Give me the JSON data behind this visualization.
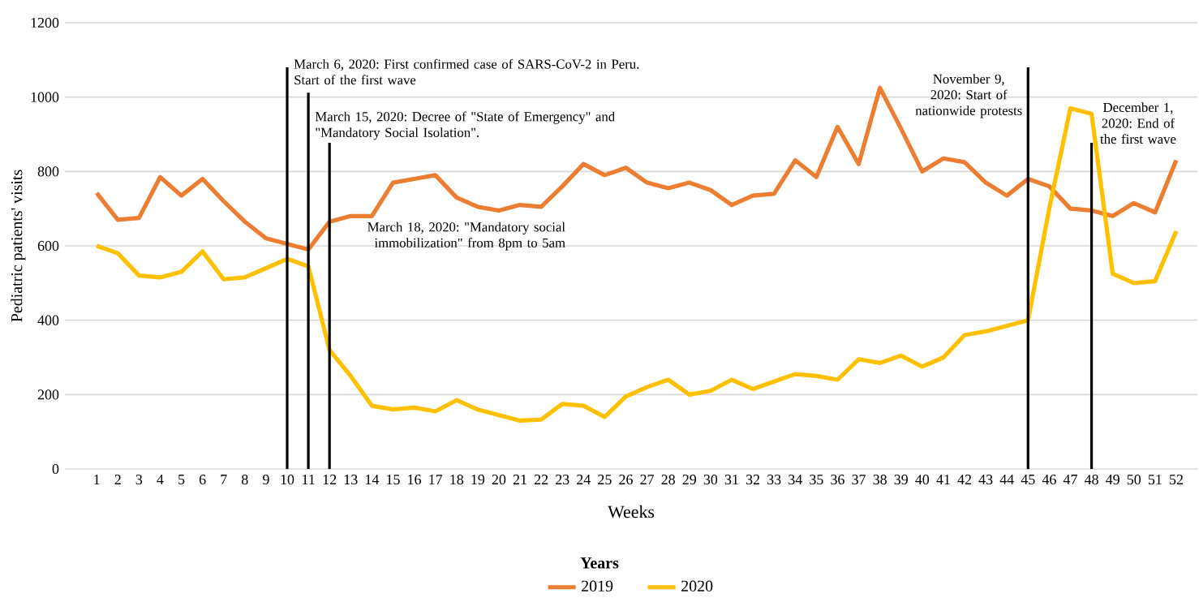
{
  "chart_data": {
    "type": "line",
    "xlabel": "Weeks",
    "ylabel": "Pediatric patients' visits",
    "legend_title": "Years",
    "legend": "bottom",
    "grid": "y",
    "x": [
      1,
      2,
      3,
      4,
      5,
      6,
      7,
      8,
      9,
      10,
      11,
      12,
      13,
      14,
      15,
      16,
      17,
      18,
      19,
      20,
      21,
      22,
      23,
      24,
      25,
      26,
      27,
      28,
      29,
      30,
      31,
      32,
      33,
      34,
      35,
      36,
      37,
      38,
      39,
      40,
      41,
      42,
      43,
      44,
      45,
      46,
      47,
      48,
      49,
      50,
      51,
      52
    ],
    "xlim": [
      -0.5,
      53
    ],
    "xticks": [
      1,
      2,
      3,
      4,
      5,
      6,
      7,
      8,
      9,
      10,
      11,
      12,
      13,
      14,
      15,
      16,
      17,
      18,
      19,
      20,
      21,
      22,
      23,
      24,
      25,
      26,
      27,
      28,
      29,
      30,
      31,
      32,
      33,
      34,
      35,
      36,
      37,
      38,
      39,
      40,
      41,
      42,
      43,
      44,
      45,
      46,
      47,
      48,
      49,
      50,
      51,
      52
    ],
    "ylim": [
      0,
      1200
    ],
    "yticks": [
      0,
      200,
      400,
      600,
      800,
      1000,
      1200
    ],
    "series": [
      {
        "name": "2019",
        "color": "#ed7d31",
        "values": [
          742,
          670,
          675,
          785,
          735,
          780,
          720,
          665,
          620,
          605,
          590,
          665,
          680,
          680,
          770,
          780,
          790,
          730,
          705,
          695,
          710,
          705,
          760,
          820,
          790,
          810,
          770,
          755,
          770,
          750,
          710,
          735,
          740,
          830,
          785,
          920,
          820,
          1025,
          915,
          800,
          835,
          825,
          770,
          735,
          780,
          760,
          700,
          695,
          680,
          715,
          690,
          830
        ]
      },
      {
        "name": "2020",
        "color": "#ffc000",
        "values": [
          600,
          580,
          520,
          515,
          530,
          585,
          510,
          515,
          540,
          565,
          545,
          320,
          250,
          170,
          160,
          165,
          155,
          185,
          160,
          145,
          130,
          133,
          175,
          170,
          140,
          195,
          220,
          240,
          200,
          210,
          240,
          215,
          235,
          255,
          250,
          240,
          295,
          285,
          305,
          275,
          300,
          360,
          370,
          385,
          400,
          700,
          970,
          955,
          525,
          500,
          505,
          640
        ]
      }
    ],
    "ref_lines": [
      {
        "axis": "x",
        "value": 10,
        "label": "March 6, 2020: First confirmed case of SARS-CoV-2 in Peru. Start of the first wave",
        "color": "#000000"
      },
      {
        "axis": "x",
        "value": 11,
        "label": "March 15, 2020: Decree of \"State of Emergency\" and \"Mandatory Social Isolation\".",
        "color": "#000000"
      },
      {
        "axis": "x",
        "value": 12,
        "label": "March 18, 2020: \"Mandatory social immobilization\" from 8pm to 5am",
        "color": "#000000"
      },
      {
        "axis": "x",
        "value": 45,
        "label": "November 9, 2020: Start of nationwide protests",
        "color": "#000000"
      },
      {
        "axis": "x",
        "value": 48,
        "label": "December 1, 2020: End of the first wave",
        "color": "#000000"
      }
    ]
  }
}
